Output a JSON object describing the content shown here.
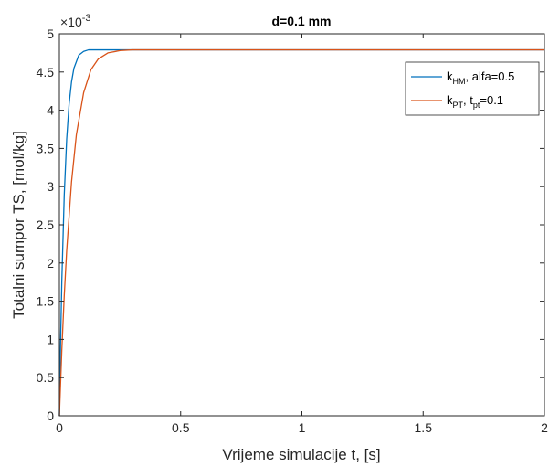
{
  "chart_data": {
    "type": "line",
    "title": "d=0.1 mm",
    "xlabel": "Vrijeme simulacije t,  [s]",
    "ylabel": "Totalni sumpor TS,  [mol/kg]",
    "y_exponent_base": "×10",
    "y_exponent_power": "-3",
    "xlim": [
      0,
      2
    ],
    "ylim": [
      0,
      0.005
    ],
    "x_ticks": [
      0,
      0.5,
      1,
      1.5,
      2
    ],
    "x_tick_labels": [
      "0",
      "0.5",
      "1",
      "1.5",
      "2"
    ],
    "y_ticks": [
      0,
      0.0005,
      0.001,
      0.0015,
      0.002,
      0.0025,
      0.003,
      0.0035,
      0.004,
      0.0045,
      0.005
    ],
    "y_tick_labels": [
      "0",
      "0.5",
      "1",
      "1.5",
      "2",
      "2.5",
      "3",
      "3.5",
      "4",
      "4.5",
      "5"
    ],
    "grid": false,
    "legend_position": "top-right",
    "series": [
      {
        "name_main": "k",
        "name_sub": "HM",
        "name_rest": ",  alfa=0.5",
        "color": "#0072BD",
        "x": [
          0,
          0.005,
          0.01,
          0.02,
          0.03,
          0.04,
          0.05,
          0.06,
          0.08,
          0.1,
          0.12,
          0.15,
          0.2,
          0.3,
          0.5,
          1,
          1.5,
          2
        ],
        "y": [
          0,
          0.00098,
          0.00176,
          0.00289,
          0.00362,
          0.00408,
          0.00437,
          0.00455,
          0.00472,
          0.00477,
          0.00479,
          0.00479,
          0.00479,
          0.00479,
          0.00479,
          0.00479,
          0.00479,
          0.00479
        ]
      },
      {
        "name_main": "k",
        "name_sub": "PT",
        "name_rest": ",  t",
        "name_sub2": "pt",
        "name_rest2": "=0.1",
        "color": "#D95319",
        "x": [
          0,
          0.01,
          0.02,
          0.03,
          0.05,
          0.07,
          0.1,
          0.13,
          0.16,
          0.2,
          0.25,
          0.3,
          0.35,
          0.4,
          0.5,
          1,
          1.5,
          2
        ],
        "y": [
          0,
          0.00086,
          0.00157,
          0.00216,
          0.00306,
          0.00368,
          0.00423,
          0.00453,
          0.00467,
          0.00475,
          0.00478,
          0.00479,
          0.00479,
          0.00479,
          0.00479,
          0.00479,
          0.00479,
          0.00479
        ]
      }
    ]
  }
}
